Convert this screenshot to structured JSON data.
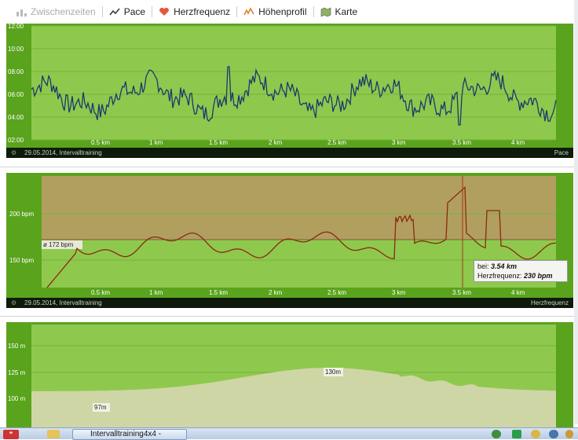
{
  "toolbar": {
    "items": [
      {
        "label": "Zwischenzeiten",
        "icon": "bar-chart-icon",
        "disabled": true
      },
      {
        "label": "Pace",
        "icon": "pace-line-icon"
      },
      {
        "label": "Herzfrequenz",
        "icon": "heart-icon"
      },
      {
        "label": "Höhenprofil",
        "icon": "elevation-icon"
      },
      {
        "label": "Karte",
        "icon": "map-icon"
      }
    ]
  },
  "colors": {
    "panel_bg": "#5aa31d",
    "plot_bg": "#8ec94e",
    "grid": "#76b23a",
    "pace_line": "#1a3a6b",
    "hr_line": "#8b2a10",
    "hr_zone": "#b59a63",
    "elev_fill": "#cfd6a6",
    "footer_bg": "#0e1a0a"
  },
  "charts": {
    "pace": {
      "y_ticks": [
        "12:00",
        "10:00",
        "08:00",
        "06:00",
        "04:00",
        "02:00"
      ],
      "x_ticks": [
        "0.5 km",
        "1 km",
        "1.5 km",
        "2 km",
        "2.5 km",
        "3 km",
        "3.5 km",
        "4 km"
      ],
      "footer_left": "29.05.2014, Intervalltraining",
      "footer_right": "Pace"
    },
    "hr": {
      "y_ticks": [
        "200 bpm",
        "150 bpm"
      ],
      "x_ticks": [
        "0.5 km",
        "1 km",
        "1.5 km",
        "2 km",
        "2.5 km",
        "3 km",
        "3.5 km",
        "4 km"
      ],
      "avg_label": "ø 172 bpm",
      "tooltip": {
        "line1_prefix": "bei: ",
        "line1_value": "3.54 km",
        "line2_prefix": "Herzfrequenz: ",
        "line2_value": "230 bpm"
      },
      "footer_left": "29.05.2014, Intervalltraining",
      "footer_right": "Herzfrequenz"
    },
    "elevation": {
      "y_ticks": [
        "150 m",
        "125 m",
        "100 m"
      ],
      "labels": {
        "max": "130m",
        "min": "97m"
      }
    }
  },
  "taskbar": {
    "task_label": "Intervalltraining4x4 -"
  }
}
